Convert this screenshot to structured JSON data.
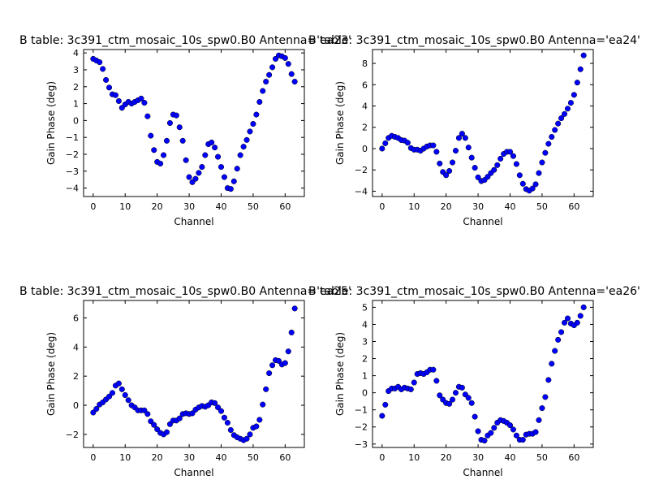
{
  "chart_data": [
    {
      "type": "scatter",
      "title": "B table: 3c391_ctm_mosaic_10s_spw0.B0      Antenna='ea23'",
      "xlabel": "Channel",
      "ylabel": "Gain Phase (deg)",
      "xlim": [
        -3,
        66
      ],
      "ylim": [
        -4.5,
        4.2
      ],
      "xticks": [
        0,
        10,
        20,
        30,
        40,
        50,
        60
      ],
      "yticks": [
        -4,
        -3,
        -2,
        -1,
        0,
        1,
        2,
        3,
        4
      ],
      "x": [
        0,
        1,
        2,
        3,
        4,
        5,
        6,
        7,
        8,
        9,
        10,
        11,
        12,
        13,
        14,
        15,
        16,
        17,
        18,
        19,
        20,
        21,
        22,
        23,
        24,
        25,
        26,
        27,
        28,
        29,
        30,
        31,
        32,
        33,
        34,
        35,
        36,
        37,
        38,
        39,
        40,
        41,
        42,
        43,
        44,
        45,
        46,
        47,
        48,
        49,
        50,
        51,
        52,
        53,
        54,
        55,
        56,
        57,
        58,
        59,
        60,
        61,
        62,
        63
      ],
      "y": [
        3.65,
        3.55,
        3.45,
        3.05,
        2.4,
        1.95,
        1.55,
        1.5,
        1.15,
        0.75,
        0.95,
        1.1,
        1.0,
        1.1,
        1.2,
        1.3,
        1.05,
        0.25,
        -0.9,
        -1.75,
        -2.45,
        -2.55,
        -2.05,
        -1.2,
        -0.15,
        0.35,
        0.3,
        -0.4,
        -1.2,
        -2.35,
        -3.35,
        -3.65,
        -3.45,
        -3.1,
        -2.75,
        -2.05,
        -1.4,
        -1.3,
        -1.6,
        -2.15,
        -2.75,
        -3.35,
        -4.0,
        -4.05,
        -3.6,
        -2.85,
        -2.05,
        -1.55,
        -1.15,
        -0.65,
        -0.2,
        0.35,
        1.1,
        1.75,
        2.3,
        2.7,
        3.15,
        3.65,
        3.85,
        3.8,
        3.7,
        3.35,
        2.75,
        2.3
      ],
      "marker_color": "#0000ff"
    },
    {
      "type": "scatter",
      "title": "B table: 3c391_ctm_mosaic_10s_spw0.B0      Antenna='ea24'",
      "xlabel": "Channel",
      "ylabel": "Gain Phase (deg)",
      "xlim": [
        -3,
        66
      ],
      "ylim": [
        -4.5,
        9.3
      ],
      "xticks": [
        0,
        10,
        20,
        30,
        40,
        50,
        60
      ],
      "yticks": [
        -4,
        -2,
        0,
        2,
        4,
        6,
        8
      ],
      "x": [
        0,
        1,
        2,
        3,
        4,
        5,
        6,
        7,
        8,
        9,
        10,
        11,
        12,
        13,
        14,
        15,
        16,
        17,
        18,
        19,
        20,
        21,
        22,
        23,
        24,
        25,
        26,
        27,
        28,
        29,
        30,
        31,
        32,
        33,
        34,
        35,
        36,
        37,
        38,
        39,
        40,
        41,
        42,
        43,
        44,
        45,
        46,
        47,
        48,
        49,
        50,
        51,
        52,
        53,
        54,
        55,
        56,
        57,
        58,
        59,
        60,
        61,
        62,
        63
      ],
      "y": [
        0.0,
        0.5,
        1.0,
        1.2,
        1.1,
        1.0,
        0.8,
        0.75,
        0.55,
        0.05,
        -0.1,
        -0.1,
        -0.2,
        0.0,
        0.2,
        0.3,
        0.3,
        -0.3,
        -1.4,
        -2.2,
        -2.5,
        -2.1,
        -1.3,
        -0.2,
        1.0,
        1.4,
        1.0,
        0.1,
        -0.85,
        -1.8,
        -2.7,
        -3.05,
        -2.95,
        -2.65,
        -2.3,
        -2.0,
        -1.55,
        -0.95,
        -0.5,
        -0.3,
        -0.3,
        -0.7,
        -1.45,
        -2.5,
        -3.3,
        -3.8,
        -3.95,
        -3.75,
        -3.35,
        -2.3,
        -1.3,
        -0.4,
        0.45,
        1.1,
        1.75,
        2.35,
        2.85,
        3.25,
        3.75,
        4.3,
        5.05,
        6.2,
        7.45,
        8.75
      ],
      "marker_color": "#0000ff"
    },
    {
      "type": "scatter",
      "title": "B table: 3c391_ctm_mosaic_10s_spw0.B0      Antenna='ea25'",
      "xlabel": "Channel",
      "ylabel": "Gain Phase (deg)",
      "xlim": [
        -3,
        66
      ],
      "ylim": [
        -2.9,
        7.2
      ],
      "xticks": [
        0,
        10,
        20,
        30,
        40,
        50,
        60
      ],
      "yticks": [
        -2,
        0,
        2,
        4,
        6
      ],
      "x": [
        0,
        1,
        2,
        3,
        4,
        5,
        6,
        7,
        8,
        9,
        10,
        11,
        12,
        13,
        14,
        15,
        16,
        17,
        18,
        19,
        20,
        21,
        22,
        23,
        24,
        25,
        26,
        27,
        28,
        29,
        30,
        31,
        32,
        33,
        34,
        35,
        36,
        37,
        38,
        39,
        40,
        41,
        42,
        43,
        44,
        45,
        46,
        47,
        48,
        49,
        50,
        51,
        52,
        53,
        54,
        55,
        56,
        57,
        58,
        59,
        60,
        61,
        62,
        63
      ],
      "y": [
        -0.5,
        -0.25,
        0.05,
        0.2,
        0.4,
        0.6,
        0.85,
        1.35,
        1.5,
        1.1,
        0.7,
        0.35,
        0.0,
        -0.15,
        -0.35,
        -0.35,
        -0.35,
        -0.6,
        -1.1,
        -1.35,
        -1.65,
        -1.9,
        -2.0,
        -1.85,
        -1.3,
        -1.05,
        -1.05,
        -0.9,
        -0.6,
        -0.55,
        -0.6,
        -0.55,
        -0.3,
        -0.15,
        -0.05,
        -0.1,
        0.0,
        0.2,
        0.15,
        -0.15,
        -0.4,
        -0.85,
        -1.2,
        -1.7,
        -2.05,
        -2.2,
        -2.3,
        -2.4,
        -2.3,
        -2.0,
        -1.55,
        -1.45,
        -1.0,
        0.05,
        1.1,
        2.2,
        2.75,
        3.1,
        3.05,
        2.8,
        2.9,
        3.7,
        5.0,
        6.65
      ],
      "marker_color": "#0000ff"
    },
    {
      "type": "scatter",
      "title": "B table: 3c391_ctm_mosaic_10s_spw0.B0      Antenna='ea26'",
      "xlabel": "Channel",
      "ylabel": "Gain Phase (deg)",
      "xlim": [
        -3,
        66
      ],
      "ylim": [
        -3.2,
        5.4
      ],
      "xticks": [
        0,
        10,
        20,
        30,
        40,
        50,
        60
      ],
      "yticks": [
        -3,
        -2,
        -1,
        0,
        1,
        2,
        3,
        4,
        5
      ],
      "x": [
        0,
        1,
        2,
        3,
        4,
        5,
        6,
        7,
        8,
        9,
        10,
        11,
        12,
        13,
        14,
        15,
        16,
        17,
        18,
        19,
        20,
        21,
        22,
        23,
        24,
        25,
        26,
        27,
        28,
        29,
        30,
        31,
        32,
        33,
        34,
        35,
        36,
        37,
        38,
        39,
        40,
        41,
        42,
        43,
        44,
        45,
        46,
        47,
        48,
        49,
        50,
        51,
        52,
        53,
        54,
        55,
        56,
        57,
        58,
        59,
        60,
        61,
        62,
        63
      ],
      "y": [
        -1.35,
        -0.7,
        0.1,
        0.25,
        0.25,
        0.35,
        0.2,
        0.3,
        0.25,
        0.2,
        0.6,
        1.1,
        1.15,
        1.1,
        1.2,
        1.35,
        1.35,
        0.7,
        -0.15,
        -0.4,
        -0.6,
        -0.65,
        -0.4,
        0.0,
        0.35,
        0.3,
        -0.1,
        -0.3,
        -0.6,
        -1.4,
        -2.25,
        -2.75,
        -2.8,
        -2.5,
        -2.35,
        -2.05,
        -1.75,
        -1.6,
        -1.65,
        -1.75,
        -1.9,
        -2.15,
        -2.5,
        -2.75,
        -2.75,
        -2.45,
        -2.4,
        -2.4,
        -2.3,
        -1.6,
        -0.9,
        -0.25,
        0.75,
        1.7,
        2.45,
        3.1,
        3.55,
        4.1,
        4.35,
        4.05,
        3.95,
        4.1,
        4.5,
        5.0
      ],
      "marker_color": "#0000ff"
    }
  ]
}
